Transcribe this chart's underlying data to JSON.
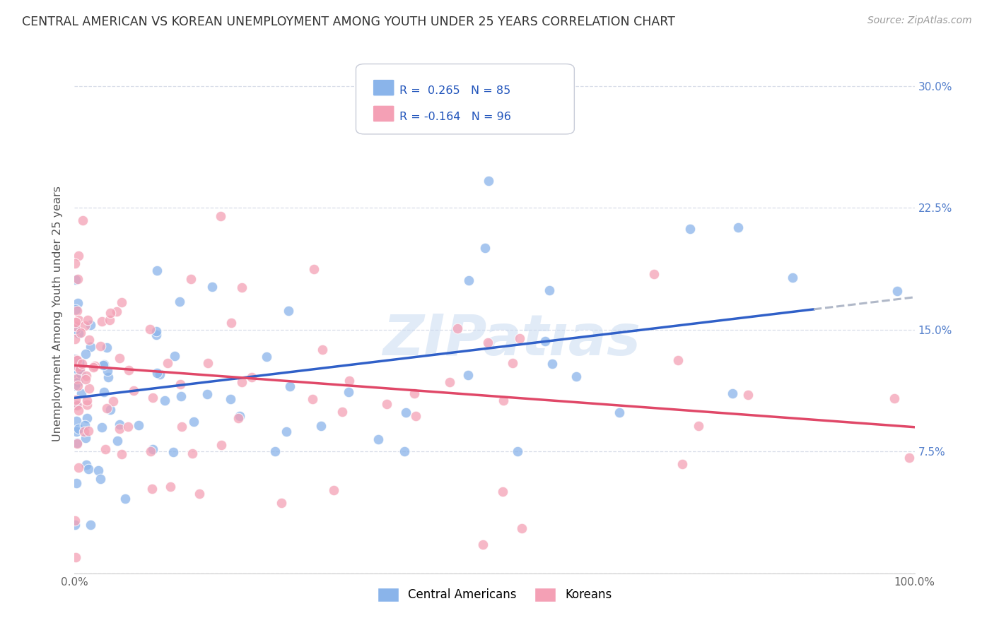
{
  "title": "CENTRAL AMERICAN VS KOREAN UNEMPLOYMENT AMONG YOUTH UNDER 25 YEARS CORRELATION CHART",
  "source": "Source: ZipAtlas.com",
  "ylabel": "Unemployment Among Youth under 25 years",
  "r_central": 0.265,
  "n_central": 85,
  "r_korean": -0.164,
  "n_korean": 96,
  "xlim": [
    0.0,
    1.0
  ],
  "ylim": [
    0.0,
    0.32
  ],
  "x_ticks": [
    0.0,
    0.1,
    0.2,
    0.3,
    0.4,
    0.5,
    0.6,
    0.7,
    0.8,
    0.9,
    1.0
  ],
  "y_ticks": [
    0.0,
    0.075,
    0.15,
    0.225,
    0.3
  ],
  "y_tick_labels_right": [
    "",
    "7.5%",
    "15.0%",
    "22.5%",
    "30.0%"
  ],
  "color_central": "#8ab4ea",
  "color_korean": "#f4a0b5",
  "trend_color_central": "#3060c8",
  "trend_color_korean": "#e04868",
  "trend_dash_color": "#b0b8c8",
  "background_color": "#ffffff",
  "grid_color": "#d8dde8",
  "legend_R_central": "R =  0.265",
  "legend_N_central": "N = 85",
  "legend_R_korean": "R = -0.164",
  "legend_N_korean": "N = 96",
  "legend_label_central": "Central Americans",
  "legend_label_korean": "Koreans",
  "ca_intercept": 0.108,
  "ca_slope": 0.062,
  "ko_intercept": 0.128,
  "ko_slope": -0.038
}
